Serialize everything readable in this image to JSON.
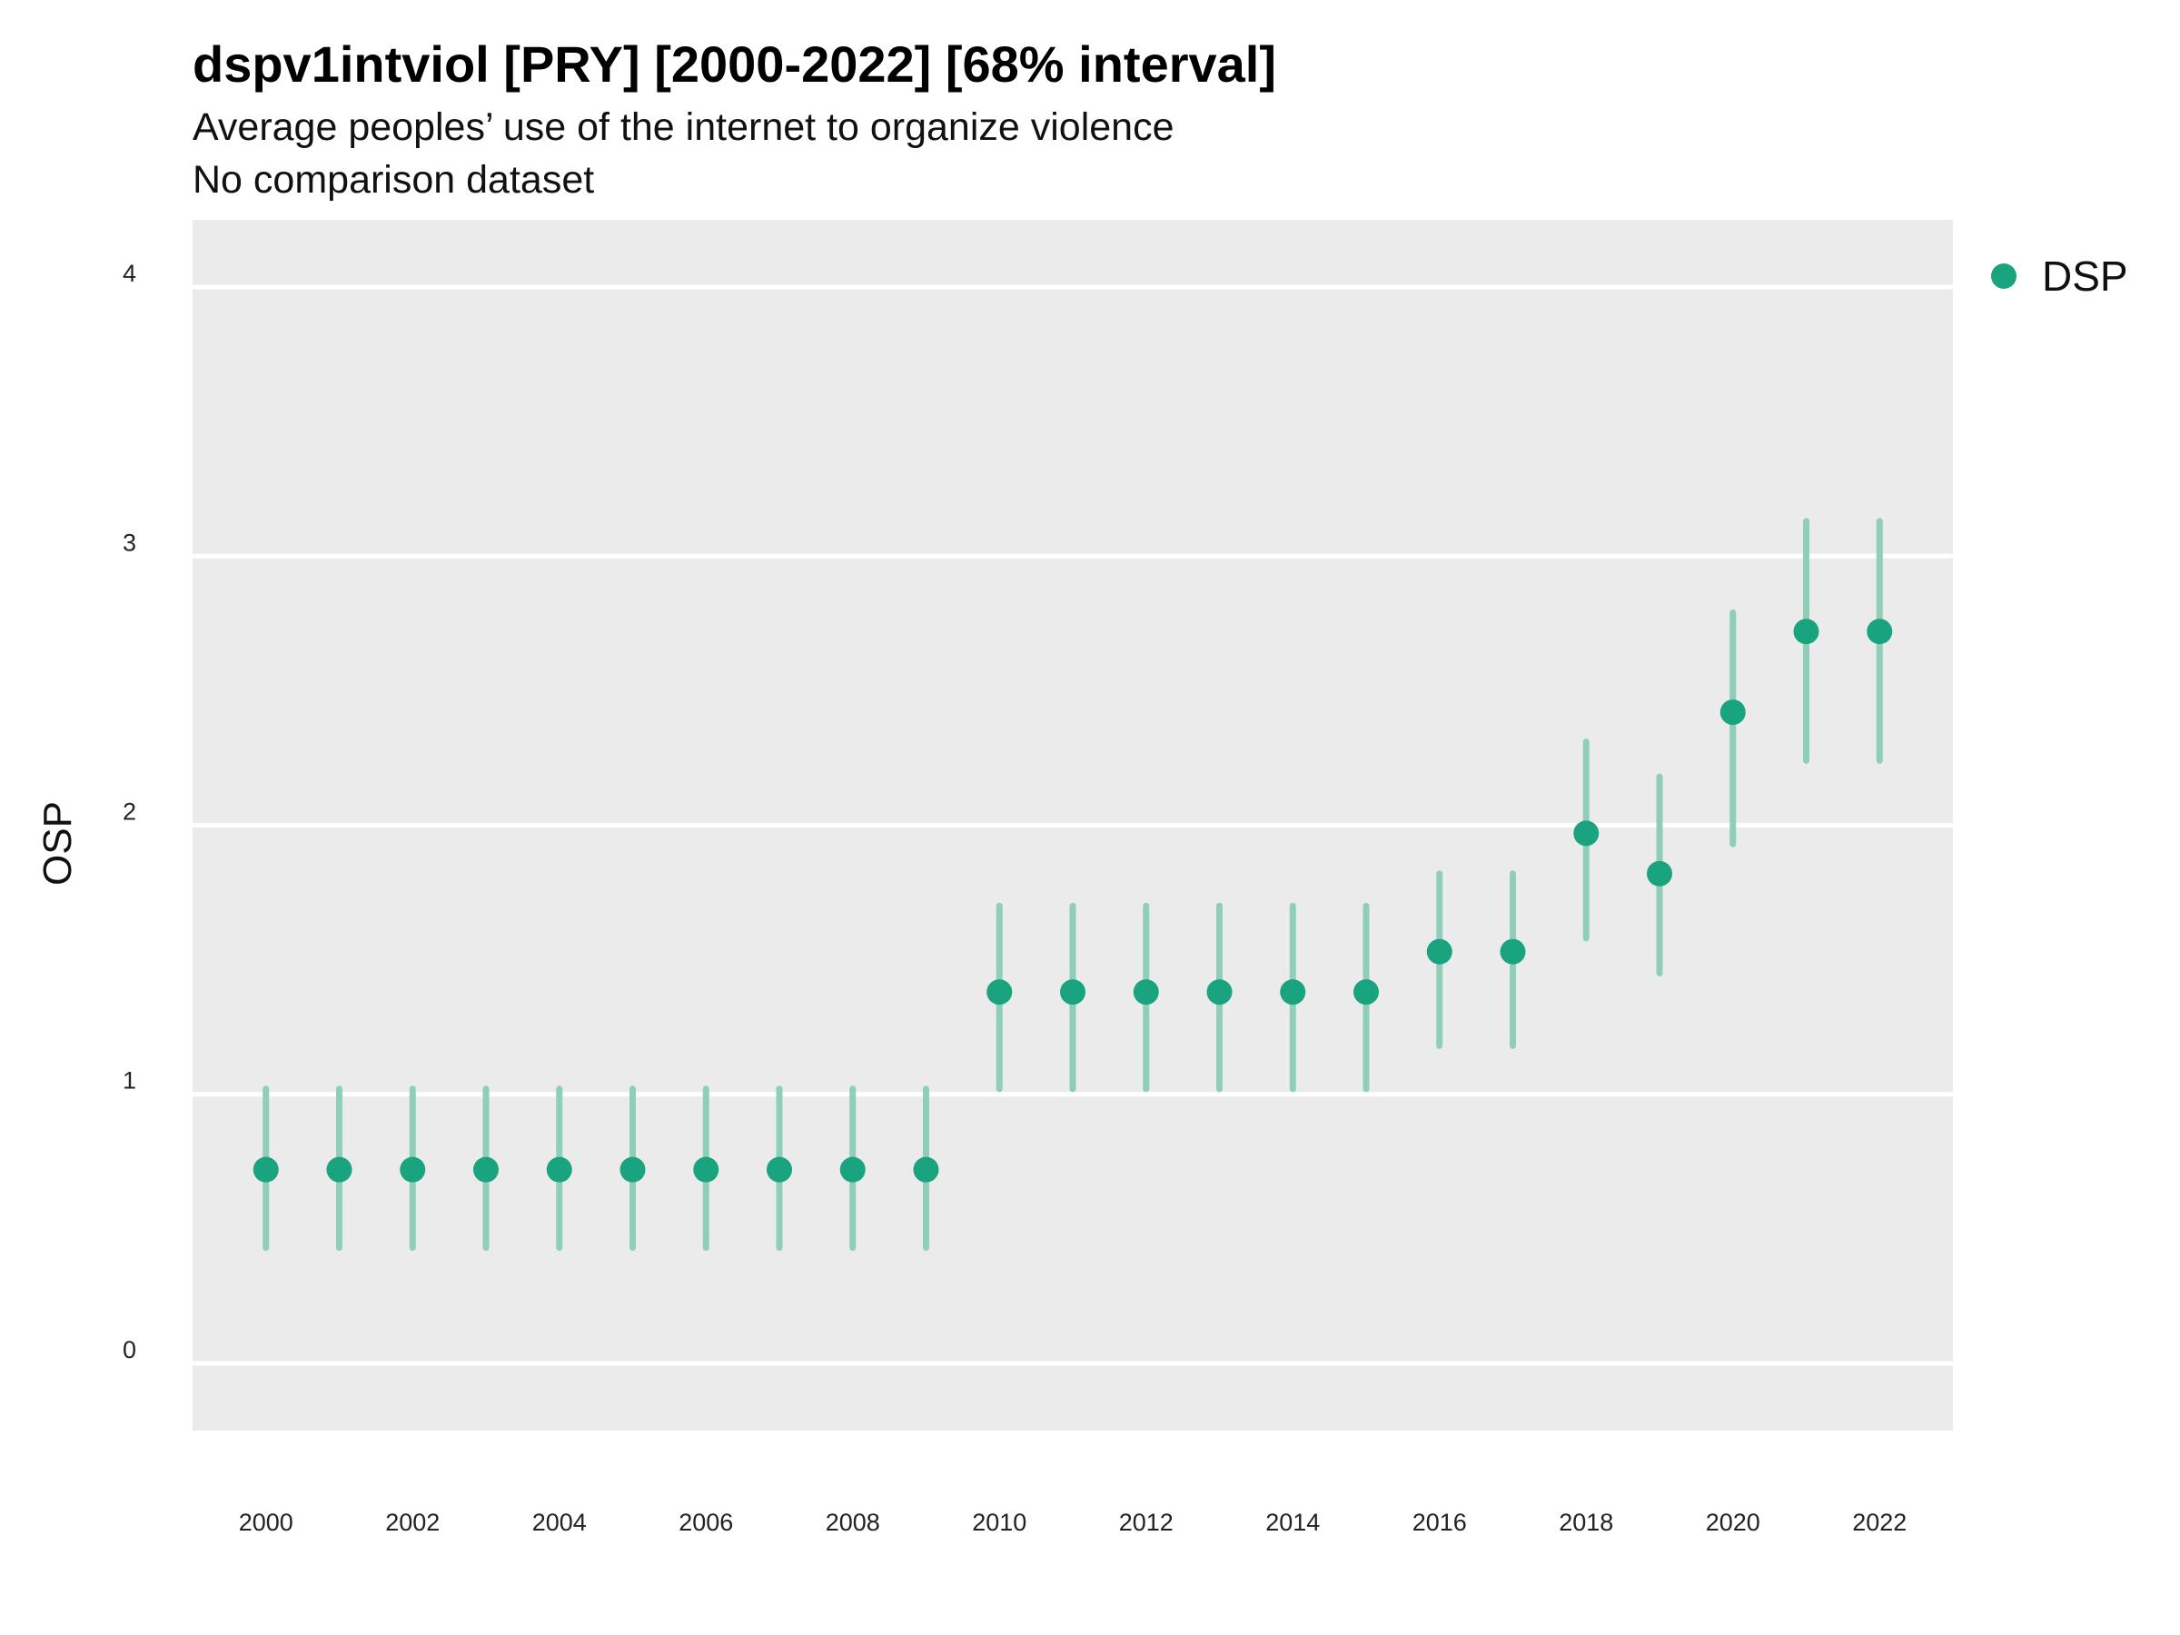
{
  "chart_data": {
    "type": "scatter",
    "title": "dspv1intviol [PRY] [2000-2022] [68% interval]",
    "subtitle": "Average peoples’ use of the internet to organize violence",
    "caption": "No comparison dataset",
    "xlabel": "",
    "ylabel": "OSP",
    "xlim": [
      1999,
      2023
    ],
    "ylim": [
      -0.25,
      4.25
    ],
    "x_ticks": [
      "2000",
      "2002",
      "2004",
      "2006",
      "2008",
      "2010",
      "2012",
      "2014",
      "2016",
      "2018",
      "2020",
      "2022"
    ],
    "y_ticks": [
      "0",
      "1",
      "2",
      "3",
      "4"
    ],
    "grid": true,
    "legend_position": "top-right",
    "colors": {
      "point": "#1aa37f",
      "interval": "#8fcfb8",
      "panel": "#ebebeb",
      "grid": "#ffffff"
    },
    "series": [
      {
        "name": "DSP",
        "x": [
          2000,
          2001,
          2002,
          2003,
          2004,
          2005,
          2006,
          2007,
          2008,
          2009,
          2010,
          2011,
          2012,
          2013,
          2014,
          2015,
          2016,
          2017,
          2018,
          2019,
          2020,
          2021,
          2022
        ],
        "y": [
          0.72,
          0.72,
          0.72,
          0.72,
          0.72,
          0.72,
          0.72,
          0.72,
          0.72,
          0.72,
          1.38,
          1.38,
          1.38,
          1.38,
          1.38,
          1.38,
          1.53,
          1.53,
          1.97,
          1.82,
          2.42,
          2.72,
          2.72
        ],
        "lower": [
          0.43,
          0.43,
          0.43,
          0.43,
          0.43,
          0.43,
          0.43,
          0.43,
          0.43,
          0.43,
          1.02,
          1.02,
          1.02,
          1.02,
          1.02,
          1.02,
          1.18,
          1.18,
          1.58,
          1.45,
          1.93,
          2.24,
          2.24
        ],
        "upper": [
          1.02,
          1.02,
          1.02,
          1.02,
          1.02,
          1.02,
          1.02,
          1.02,
          1.02,
          1.02,
          1.7,
          1.7,
          1.7,
          1.7,
          1.7,
          1.7,
          1.82,
          1.82,
          2.31,
          2.18,
          2.79,
          3.13,
          3.13
        ]
      }
    ]
  }
}
